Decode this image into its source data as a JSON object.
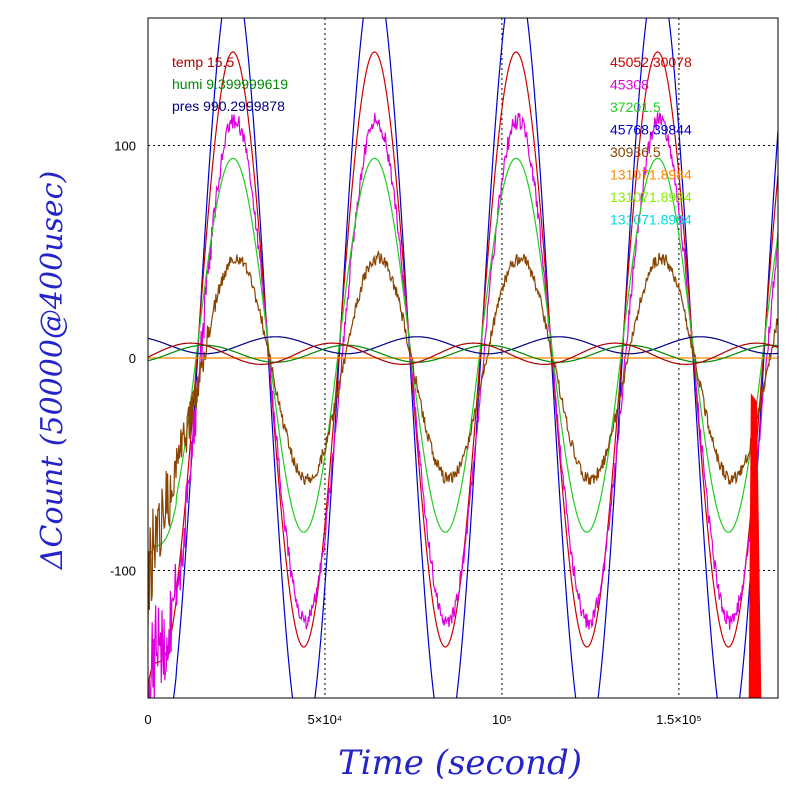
{
  "chart_data": {
    "type": "line",
    "xlabel": "Time (second)",
    "ylabel": "ΔCount (50000@400usec)",
    "xlim": [
      0,
      178000
    ],
    "ylim": [
      -160,
      160
    ],
    "x_ticks": [
      {
        "value": 0,
        "label": "0"
      },
      {
        "value": 50000,
        "label": "5×10⁴"
      },
      {
        "value": 100000,
        "label": "10⁵"
      },
      {
        "value": 150000,
        "label": "1.5×10⁵"
      }
    ],
    "y_ticks": [
      {
        "value": -100,
        "label": "-100"
      },
      {
        "value": 0,
        "label": "0"
      },
      {
        "value": 100,
        "label": "100"
      }
    ],
    "grid": "dotted",
    "env_legend": [
      {
        "text": "temp 15.5",
        "color": "#aa0000"
      },
      {
        "text": "humi 9.399999619",
        "color": "#008800"
      },
      {
        "text": "pres 990.2999878",
        "color": "#000080"
      }
    ],
    "series_legend": [
      {
        "text": "45052.30078",
        "color": "#cc0000"
      },
      {
        "text": "45308",
        "color": "#dd00dd"
      },
      {
        "text": "37201.5",
        "color": "#22cc22"
      },
      {
        "text": "45768.39844",
        "color": "#0000cc"
      },
      {
        "text": "30936.5",
        "color": "#884400"
      },
      {
        "text": "131071.8984",
        "color": "#ff8800"
      },
      {
        "text": "131071.8984",
        "color": "#88ee00"
      },
      {
        "text": "131071.8984",
        "color": "#00dddd"
      }
    ],
    "series": [
      {
        "color": "#0000cc",
        "amplitude": 182,
        "offset": 0,
        "period": 40000,
        "phase_peak": 24000,
        "start": -165
      },
      {
        "color": "#cc0000",
        "amplitude": 140,
        "offset": 4,
        "period": 40000,
        "phase_peak": 24000,
        "start": -155
      },
      {
        "color": "#dd00dd",
        "amplitude": 118,
        "offset": -6,
        "period": 40000,
        "phase_peak": 24500,
        "start": -160,
        "noise": 4
      },
      {
        "color": "#22cc22",
        "amplitude": 88,
        "offset": 6,
        "period": 40000,
        "phase_peak": 24000,
        "start": -98
      },
      {
        "color": "#884400",
        "amplitude": 52,
        "offset": -5,
        "period": 40000,
        "phase_peak": 25000,
        "start": -110,
        "noise": 3
      },
      {
        "color": "#ff8800",
        "amplitude": 0,
        "offset": 0,
        "period": 40000,
        "phase_peak": 0
      },
      {
        "color": "#000080",
        "amplitude": 4,
        "offset": 6,
        "period": 40000,
        "phase_peak": 36000
      },
      {
        "color": "#008800",
        "amplitude": 4,
        "offset": 2,
        "period": 40000,
        "phase_peak": 16000
      },
      {
        "color": "#aa0000",
        "amplitude": 5,
        "offset": 2,
        "period": 40000,
        "phase_peak": 12000
      }
    ],
    "spike": {
      "color": "#ff0000",
      "x": [
        170000,
        173000
      ],
      "y_top": -18
    }
  }
}
